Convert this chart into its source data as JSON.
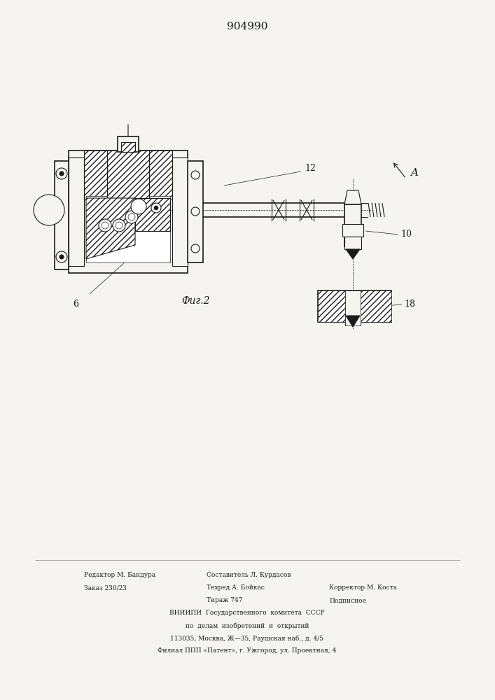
{
  "title": "904990",
  "background_color": "#f5f4f0",
  "line_color": "#1a1a1a",
  "fig_label": "Фиг.2",
  "bottom_text": [
    [
      "Редактор М. Бандура",
      "Составитель Л. Курдасов",
      ""
    ],
    [
      "Заказ 230/23",
      "Техред А. Бойкас",
      "Корректор М. Коста"
    ],
    [
      "",
      "Тираж 747",
      "Подписное"
    ],
    [
      "ВНИИПИ  Государственного  комитета  СССР",
      "",
      ""
    ],
    [
      "по  делам  изобретений  и  открытий",
      "",
      ""
    ],
    [
      "113035, Москва, Ж—35, Раушская наб., д. 4/5",
      "",
      ""
    ],
    [
      "Филиал ППП «Патент», г. Ужгород, ул. Проектная, 4",
      "",
      ""
    ]
  ]
}
